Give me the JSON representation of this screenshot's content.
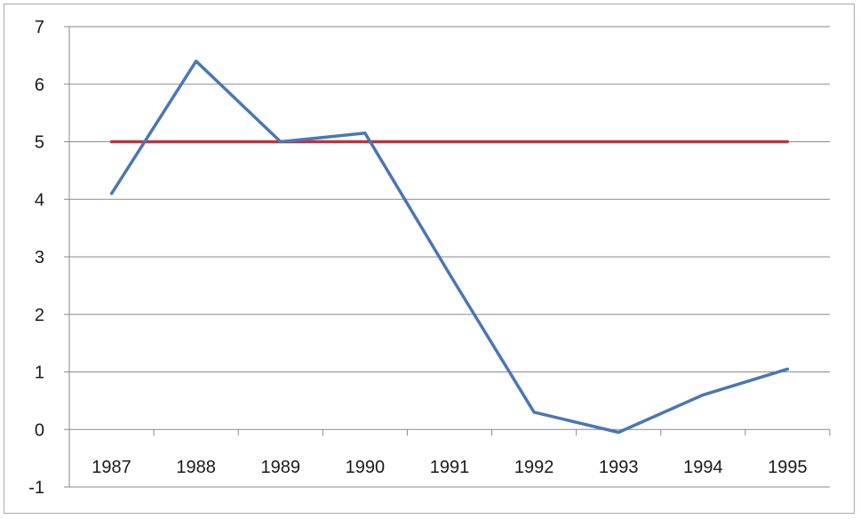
{
  "chart_data": {
    "type": "line",
    "title": "",
    "xlabel": "",
    "ylabel": "",
    "categories": [
      "1987",
      "1988",
      "1989",
      "1990",
      "1991",
      "1992",
      "1993",
      "1994",
      "1995"
    ],
    "y_ticks": [
      "7",
      "6",
      "5",
      "4",
      "3",
      "2",
      "1",
      "0",
      "-1"
    ],
    "ylim": [
      -1,
      7
    ],
    "grid": true,
    "legend": "none",
    "series": [
      {
        "values": [
          4.1,
          6.4,
          5.0,
          5.15,
          2.7,
          0.3,
          -0.05,
          0.6,
          1.05
        ],
        "color": "#4a77b4"
      },
      {
        "values": [
          5,
          5,
          5,
          5,
          5,
          5,
          5,
          5,
          5
        ],
        "color": "#b7353f"
      }
    ]
  }
}
